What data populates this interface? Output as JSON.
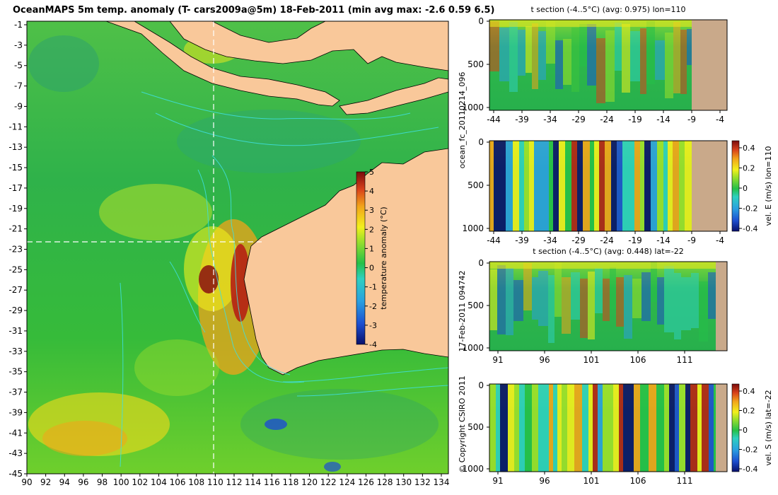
{
  "title": "OceanMAPS 5m temp. anomaly (T- cars2009a@5m) 18-Feb-2011 (min avg max: -2.6 0.59 6.5)",
  "side_label_1": "ocean_fc_20110214_096",
  "side_label_2": "17-Feb-2011 094742",
  "copyright": "© Copyright CSIRO 2011",
  "colors": {
    "land": "#f9c89a",
    "ocean": "#2eb53c",
    "seabed": "#c9a98a",
    "contour": "#3fe0e0",
    "crosshair": "#ffffff"
  },
  "map": {
    "lon_ticks": [
      "90",
      "92",
      "94",
      "96",
      "98",
      "100",
      "102",
      "104",
      "106",
      "108",
      "110",
      "112",
      "114",
      "116",
      "118",
      "120",
      "122",
      "124",
      "126",
      "128",
      "130",
      "132",
      "134"
    ],
    "lat_ticks": [
      "-1",
      "-3",
      "-5",
      "-7",
      "-9",
      "-11",
      "-13",
      "-15",
      "-17",
      "-19",
      "-21",
      "-23",
      "-25",
      "-27",
      "-29",
      "-31",
      "-33",
      "-35",
      "-37",
      "-39",
      "-41",
      "-43",
      "-45"
    ],
    "lon_range": [
      90,
      135
    ],
    "lat_range": [
      -45,
      0.5
    ],
    "crosshair_lon": 110,
    "crosshair_lat": -22
  },
  "colorbar": {
    "label": "temperature anomaly (°C)",
    "ticks": [
      "5",
      "4",
      "3",
      "2",
      "1",
      "0",
      "-1",
      "-2",
      "-3",
      "-4"
    ],
    "range": [
      -4,
      5
    ]
  },
  "panels": [
    {
      "title": "t section (-4..5°C) (avg: 0.975) lon=110",
      "x_ticks": [
        "-44",
        "-39",
        "-34",
        "-29",
        "-24",
        "-19",
        "-14",
        "-9",
        "-4"
      ],
      "y_ticks": [
        "0",
        "500",
        "1000"
      ],
      "variable": "temperature"
    },
    {
      "title": "",
      "x_ticks": [
        "-44",
        "-39",
        "-34",
        "-29",
        "-24",
        "-19",
        "-14",
        "-9",
        "-4"
      ],
      "y_ticks": [
        "0",
        "500",
        "1000"
      ],
      "variable": "velocity",
      "colorbar_label": "vel. E (m/s) lon=110",
      "colorbar_ticks": [
        "0.4",
        "0.2",
        "0",
        "-0.2",
        "-0.4"
      ]
    },
    {
      "title": "t section (-4..5°C) (avg: 0.448) lat=-22",
      "x_ticks": [
        "91",
        "96",
        "101",
        "106",
        "111"
      ],
      "y_ticks": [
        "0",
        "500",
        "1000"
      ],
      "variable": "temperature"
    },
    {
      "title": "",
      "x_ticks": [
        "91",
        "96",
        "101",
        "106",
        "111"
      ],
      "y_ticks": [
        "0",
        "500",
        "1000"
      ],
      "variable": "velocity",
      "colorbar_label": "vel. S (m/s) lat=-22",
      "colorbar_ticks": [
        "0.4",
        "0.2",
        "0",
        "-0.2",
        "-0.4"
      ]
    }
  ]
}
